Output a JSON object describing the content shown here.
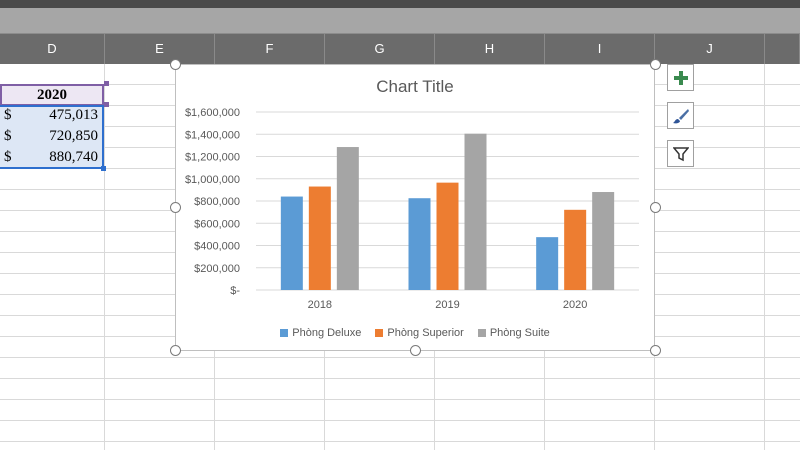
{
  "columns": [
    "D",
    "E",
    "F",
    "G",
    "H",
    "I",
    "J"
  ],
  "table": {
    "header": "2020",
    "rows": [
      {
        "currency": "$",
        "value": "475,013"
      },
      {
        "currency": "$",
        "value": "720,850"
      },
      {
        "currency": "$",
        "value": "880,740"
      }
    ]
  },
  "side_buttons": [
    "plus-icon",
    "brush-icon",
    "filter-icon"
  ],
  "colors": {
    "series": [
      "#5b9bd5",
      "#ed7d31",
      "#a5a5a5"
    ],
    "gridline": "#d9d9d9",
    "selection": "#2e6fce",
    "header_border": "#7f5fa5"
  },
  "chart_data": {
    "type": "bar",
    "title": "Chart Title",
    "categories": [
      "2018",
      "2019",
      "2020"
    ],
    "series": [
      {
        "name": "Phòng Deluxe",
        "values": [
          840000,
          825000,
          475013
        ]
      },
      {
        "name": "Phòng Superior",
        "values": [
          930000,
          965000,
          720850
        ]
      },
      {
        "name": "Phòng Suite",
        "values": [
          1285000,
          1405000,
          880740
        ]
      }
    ],
    "ylim": [
      0,
      1600000
    ],
    "yticks": [
      "$-",
      "$200,000",
      "$400,000",
      "$600,000",
      "$800,000",
      "$1,000,000",
      "$1,200,000",
      "$1,400,000",
      "$1,600,000"
    ],
    "grid": true,
    "legend": "bottom"
  }
}
